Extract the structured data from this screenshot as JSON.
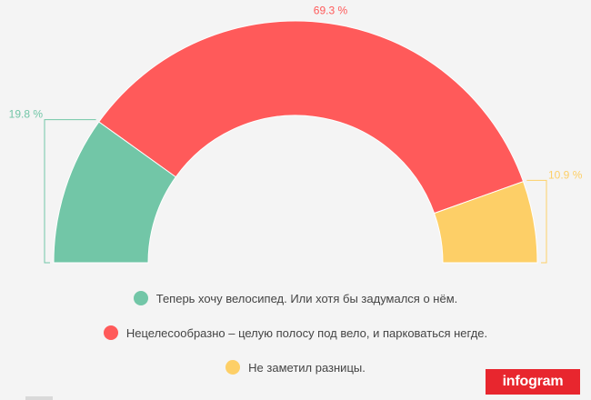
{
  "chart_data": {
    "type": "pie",
    "variant": "semicircle",
    "series": [
      {
        "name": "Теперь хочу велосипед. Или хотя бы задумался о нём.",
        "value": 19.8,
        "label": "19.8 %",
        "color": "#72c6a7"
      },
      {
        "name": "Нецелесообразно – целую полосу под вело, и парковаться негде.",
        "value": 69.3,
        "label": "69.3 %",
        "color": "#ff5a5a"
      },
      {
        "name": "Не заметил разницы.",
        "value": 10.9,
        "label": "10.9 %",
        "color": "#fdcf67"
      }
    ],
    "legend_position": "bottom"
  },
  "legend": [
    {
      "label": "Теперь хочу велосипед. Или хотя бы задумался о нём.",
      "color": "#72c6a7"
    },
    {
      "label": "Нецелесообразно – целую полосу под вело, и парковаться негде.",
      "color": "#ff5a5a"
    },
    {
      "label": "Не заметил разницы.",
      "color": "#fdcf67"
    }
  ],
  "brand": {
    "label": "infogram"
  }
}
